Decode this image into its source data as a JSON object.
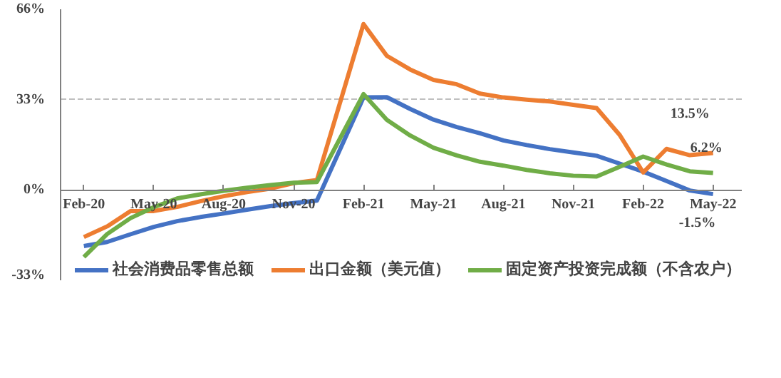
{
  "chart_data": {
    "type": "line",
    "x": [
      "2020-02",
      "2020-03",
      "2020-04",
      "2020-05",
      "2020-06",
      "2020-07",
      "2020-08",
      "2020-09",
      "2020-10",
      "2020-11",
      "2020-12",
      "2021-02",
      "2021-03",
      "2021-04",
      "2021-05",
      "2021-06",
      "2021-07",
      "2021-08",
      "2021-09",
      "2021-10",
      "2021-11",
      "2021-12",
      "2022-01",
      "2022-02",
      "2022-03",
      "2022-04",
      "2022-05"
    ],
    "series": [
      {
        "name": "社会消费品零售总额",
        "color": "#4472c4",
        "values": [
          -20.5,
          -19.0,
          -16.2,
          -13.5,
          -11.4,
          -9.9,
          -8.6,
          -7.2,
          -5.9,
          -4.8,
          -3.9,
          33.8,
          33.9,
          29.6,
          25.7,
          23.0,
          20.7,
          18.1,
          16.4,
          14.9,
          13.7,
          12.5,
          9.6,
          6.7,
          3.3,
          -0.2,
          -1.5
        ]
      },
      {
        "name": "出口金额（美元值）",
        "color": "#ed7d31",
        "values": [
          -17.2,
          -13.3,
          -7.7,
          -7.7,
          -6.2,
          -4.1,
          -2.3,
          -0.8,
          0.5,
          2.5,
          3.6,
          60.6,
          49.0,
          44.0,
          40.2,
          38.6,
          35.2,
          33.8,
          33.0,
          32.3,
          31.1,
          29.9,
          20.0,
          6.4,
          15.0,
          12.7,
          13.5
        ]
      },
      {
        "name": "固定资产投资完成额（不含农户）",
        "color": "#70ad47",
        "values": [
          -24.5,
          -16.1,
          -10.3,
          -6.3,
          -3.1,
          -1.6,
          -0.3,
          0.8,
          1.8,
          2.6,
          2.9,
          35.0,
          25.6,
          19.9,
          15.4,
          12.6,
          10.3,
          8.9,
          7.3,
          6.1,
          5.2,
          4.9,
          8.5,
          12.2,
          9.3,
          6.8,
          6.2
        ]
      }
    ],
    "xlim": [
      "2020-01-01",
      "2022-06-08"
    ],
    "xticks": [
      {
        "value": "2020-02",
        "label": "Feb-20"
      },
      {
        "value": "2020-05",
        "label": "May-20"
      },
      {
        "value": "2020-08",
        "label": "Aug-20"
      },
      {
        "value": "2020-11",
        "label": "Nov-20"
      },
      {
        "value": "2021-02",
        "label": "Feb-21"
      },
      {
        "value": "2021-05",
        "label": "May-21"
      },
      {
        "value": "2021-08",
        "label": "Aug-21"
      },
      {
        "value": "2021-11",
        "label": "Nov-21"
      },
      {
        "value": "2022-02",
        "label": "Feb-22"
      },
      {
        "value": "2022-05",
        "label": "May-22"
      }
    ],
    "ylim": [
      -33,
      66
    ],
    "yticks": [
      {
        "value": -33,
        "label": "-33%"
      },
      {
        "value": 0,
        "label": "0%"
      },
      {
        "value": 33,
        "label": "33%"
      },
      {
        "value": 66,
        "label": "66%"
      }
    ],
    "grid": "y",
    "legend": "bottom",
    "line_style": "solid",
    "annotations": [
      {
        "text": "13.5%",
        "x": "2022-05",
        "y": 13.5
      },
      {
        "text": "6.2%",
        "x": "2022-05",
        "y": 6.2
      },
      {
        "text": "-1.5%",
        "x": "2022-05",
        "y": -1.5
      }
    ]
  }
}
